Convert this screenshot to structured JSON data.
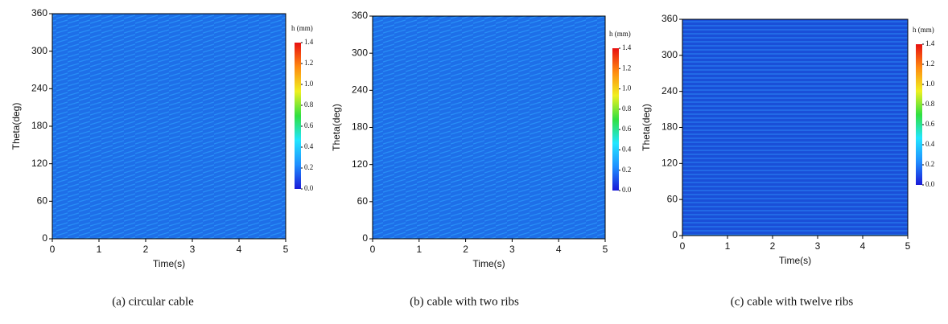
{
  "chart_data": [
    {
      "type": "heatmap",
      "caption": "(a)  circular cable",
      "xlabel": "Time(s)",
      "ylabel": "Theta(deg)",
      "xlim": [
        0,
        5
      ],
      "xticks": [
        0,
        1,
        2,
        3,
        4,
        5
      ],
      "ylim": [
        0,
        360
      ],
      "yticks": [
        0,
        60,
        120,
        180,
        240,
        300,
        360
      ],
      "colorbar": {
        "label": "h (mm)",
        "lim": [
          0,
          1.4
        ],
        "ticks": [
          {
            "value": 0,
            "label": "0.0"
          },
          0.2,
          0.4,
          0.6,
          0.8,
          {
            "value": 1,
            "label": "1.0"
          },
          1.2,
          1.4
        ],
        "colormap": [
          "#1a1ad8",
          "#1f8fff",
          "#22e6ff",
          "#30e040",
          "#f0f020",
          "#ff8a10",
          "#e81010"
        ]
      }
    },
    {
      "type": "heatmap",
      "caption": "(b) cable with two ribs",
      "xlabel": "Time(s)",
      "ylabel": "Theta(deg)",
      "xlim": [
        0,
        5
      ],
      "xticks": [
        0,
        1,
        2,
        3,
        4,
        5
      ],
      "ylim": [
        0,
        360
      ],
      "yticks": [
        0,
        60,
        120,
        180,
        240,
        300,
        360
      ],
      "colorbar": {
        "label": "h (mm)",
        "lim": [
          0,
          1.4
        ],
        "ticks": [
          {
            "value": 0,
            "label": "0.0"
          },
          0.2,
          0.4,
          0.6,
          0.8,
          {
            "value": 1,
            "label": "1.0"
          },
          1.2,
          1.4
        ],
        "colormap": [
          "#1a1ad8",
          "#1f8fff",
          "#22e6ff",
          "#30e040",
          "#f0f020",
          "#ff8a10",
          "#e81010"
        ]
      }
    },
    {
      "type": "heatmap",
      "caption": "(c) cable with twelve ribs",
      "xlabel": "Time(s)",
      "ylabel": "Theta(deg)",
      "xlim": [
        0,
        5
      ],
      "xticks": [
        0,
        1,
        2,
        3,
        4,
        5
      ],
      "ylim": [
        0,
        360
      ],
      "yticks": [
        0,
        60,
        120,
        180,
        240,
        300,
        360
      ],
      "colorbar": {
        "label": "h (mm)",
        "lim": [
          0,
          1.4
        ],
        "ticks": [
          {
            "value": 0,
            "label": "0.0"
          },
          0.2,
          0.4,
          0.6,
          0.8,
          {
            "value": 1,
            "label": "1.0"
          },
          1.2,
          1.4
        ],
        "colormap": [
          "#1a1ad8",
          "#1f8fff",
          "#22e6ff",
          "#30e040",
          "#f0f020",
          "#ff8a10",
          "#e81010"
        ]
      }
    }
  ]
}
